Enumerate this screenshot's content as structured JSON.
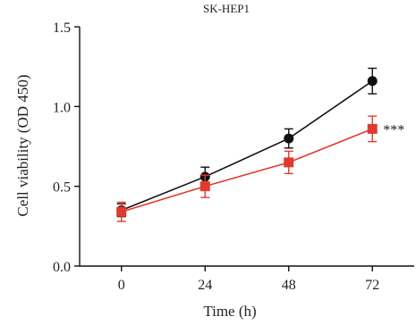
{
  "chart_data": {
    "type": "line",
    "title": "SK-HEP1",
    "xlabel": "Time (h)",
    "ylabel": "Cell viability (OD 450)",
    "x": [
      0,
      24,
      48,
      72
    ],
    "xlim": [
      -12,
      84
    ],
    "ylim": [
      0,
      1.5
    ],
    "x_ticks": [
      "0",
      "24",
      "48",
      "72"
    ],
    "y_ticks": [
      "0.0",
      "0.5",
      "1.0",
      "1.5"
    ],
    "y_tick_values": [
      0,
      0.5,
      1.0,
      1.5
    ],
    "grid": false,
    "legend": "none",
    "annotation": "***",
    "series": [
      {
        "marker": "circle",
        "color": "#111111",
        "values": [
          0.35,
          0.56,
          0.8,
          1.16
        ],
        "errors": [
          0.04,
          0.06,
          0.06,
          0.08
        ]
      },
      {
        "marker": "square",
        "color": "#e03a2e",
        "values": [
          0.34,
          0.5,
          0.65,
          0.86
        ],
        "errors": [
          0.06,
          0.07,
          0.07,
          0.08
        ]
      }
    ]
  }
}
